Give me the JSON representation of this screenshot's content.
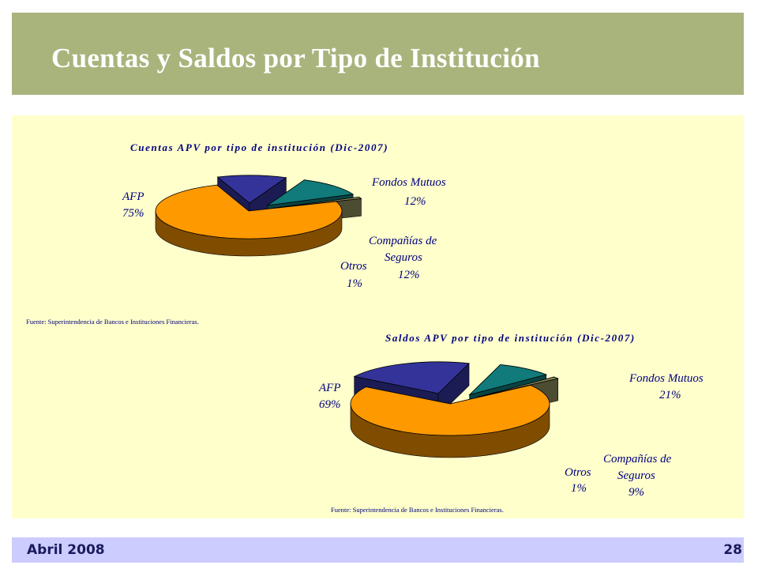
{
  "slide": {
    "title": "Cuentas y Saldos por Tipo de Institución",
    "footer_date": "Abril 2008",
    "page_number": "28"
  },
  "colors": {
    "title_band": "#a9b47d",
    "panel_bg": "#ffffcc",
    "footer_band": "#ccccff",
    "AFP": "#ff9900",
    "Fondos Mutuos": "#333399",
    "Compañías de Seguros": "#117a7a",
    "Otros": "#8b8b5a"
  },
  "chart_data": [
    {
      "type": "pie",
      "title": "Cuentas APV por tipo de institución (Dic-2007)",
      "source": "Fuente: Superintendencia de Bancos e Instituciones Financieras.",
      "series": [
        {
          "values": [
            {
              "label": "AFP",
              "value": 75,
              "value_label": "75%"
            },
            {
              "label": "Fondos Mutuos",
              "value": 12,
              "value_label": "12%"
            },
            {
              "label": "Compañías de Seguros",
              "value": 12,
              "value_label": "12%"
            },
            {
              "label": "Otros",
              "value": 1,
              "value_label": "1%"
            }
          ]
        }
      ]
    },
    {
      "type": "pie",
      "title": "Saldos APV por tipo de institución (Dic-2007)",
      "source": "Fuente: Superintendencia de Bancos e Instituciones Financieras.",
      "series": [
        {
          "values": [
            {
              "label": "AFP",
              "value": 69,
              "value_label": "69%"
            },
            {
              "label": "Fondos Mutuos",
              "value": 21,
              "value_label": "21%"
            },
            {
              "label": "Compañías de Seguros",
              "value": 9,
              "value_label": "9%"
            },
            {
              "label": "Otros",
              "value": 1,
              "value_label": "1%"
            }
          ]
        }
      ]
    }
  ]
}
